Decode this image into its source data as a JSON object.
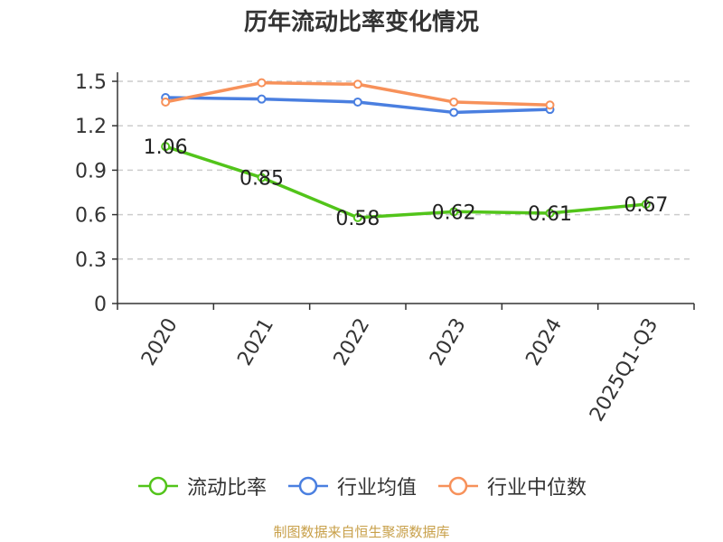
{
  "chart_data": {
    "type": "line",
    "title": "历年流动比率变化情况",
    "categories": [
      "2020",
      "2021",
      "2022",
      "2023",
      "2024",
      "2025Q1-Q3"
    ],
    "ylim": [
      0,
      1.5
    ],
    "yticks": [
      "0",
      "0.3",
      "0.6",
      "0.9",
      "1.2",
      "1.5"
    ],
    "ytick_values": [
      0,
      0.3,
      0.6,
      0.9,
      1.2,
      1.5
    ],
    "grid": true,
    "legend_position": "bottom",
    "series": [
      {
        "name": "流动比率",
        "color": "#52c41a",
        "values": [
          1.06,
          0.85,
          0.58,
          0.62,
          0.61,
          0.67
        ],
        "labels": [
          "1.06",
          "0.85",
          "0.58",
          "0.62",
          "0.61",
          "0.67"
        ]
      },
      {
        "name": "行业均值",
        "color": "#4a7fe0",
        "values": [
          1.39,
          1.38,
          1.36,
          1.29,
          1.31,
          null
        ]
      },
      {
        "name": "行业中位数",
        "color": "#f7915a",
        "values": [
          1.36,
          1.49,
          1.48,
          1.36,
          1.34,
          null
        ]
      }
    ]
  },
  "source": "制图数据来自恒生聚源数据库"
}
